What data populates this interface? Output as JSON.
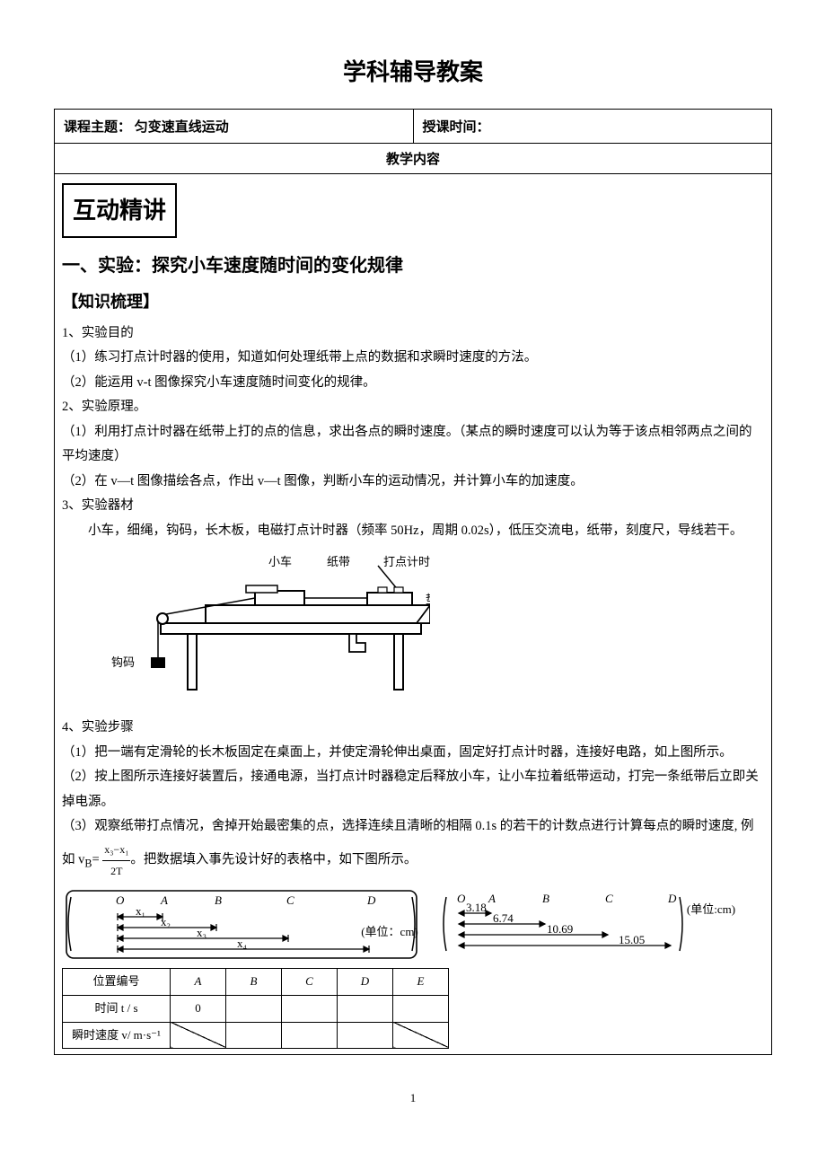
{
  "doc_title": "学科辅导教案",
  "header": {
    "left_label": "课程主题：",
    "left_value": "匀变速直线运动",
    "right_label": "授课时间：",
    "right_value": ""
  },
  "section_bar": "教学内容",
  "boxed_heading": "互动精讲",
  "section1": {
    "title": "一、实验：探究小车速度随时间的变化规律",
    "sub": "【知识梳理】",
    "p1_label": "1、实验目的",
    "p1_1": "（1）练习打点计时器的使用，知道如何处理纸带上点的数据和求瞬时速度的方法。",
    "p1_2": "（2）能运用 v-t 图像探究小车速度随时间变化的规律。",
    "p2_label": "2、实验原理。",
    "p2_1": "（1）利用打点计时器在纸带上打的点的信息，求出各点的瞬时速度。（某点的瞬时速度可以认为等于该点相邻两点之间的平均速度）",
    "p2_2": "（2）在 v—t 图像描绘各点，作出 v—t 图像，判断小车的运动情况，并计算小车的加速度。",
    "p3_label": "3、实验器材",
    "p3_text": "　　小车，细绳，钩码，长木板，电磁打点计时器（频率 50Hz，周期 0.02s），低压交流电，纸带，刻度尺，导线若干。",
    "p4_label": "4、实验步骤",
    "p4_1": "（1）把一端有定滑轮的长木板固定在桌面上，并使定滑轮伸出桌面，固定好打点计时器，连接好电路，如上图所示。",
    "p4_2": "（2）按上图所示连接好装置后，接通电源，当打点计时器稳定后释放小车，让小车拉着纸带运动，打完一条纸带后立即关掉电源。",
    "p4_3_a": "（3）观察纸带打点情况，舍掉开始最密集的点，选择连续且清晰的相隔 0.1s 的若干的计数点进行计算每点的瞬时速度, 例如 v",
    "p4_3_b": "B",
    "p4_3_c": "= ",
    "frac_num": "x₃−x₁",
    "frac_den": "2T",
    "p4_3_d": "。把数据填入事先设计好的表格中，如下图所示。"
  },
  "apparatus_diagram": {
    "labels": {
      "car": "小车",
      "tape": "纸带",
      "timer": "打点计时器",
      "block": "垫块",
      "weight": "钩码"
    },
    "colors": {
      "stroke": "#000000",
      "fill_light": "#ffffff"
    }
  },
  "tape_diagram_left": {
    "points": [
      "O",
      "A",
      "B",
      "C",
      "D"
    ],
    "segments": [
      "x₁",
      "x₂",
      "x₃",
      "x₄"
    ],
    "unit_label": "(单位：cm)"
  },
  "tape_diagram_right": {
    "points": [
      "O",
      "A",
      "B",
      "C",
      "D"
    ],
    "values": [
      "3.18",
      "6.74",
      "10.69",
      "15.05"
    ],
    "unit_label": "(单位:cm)"
  },
  "data_table": {
    "rows": [
      {
        "label": "位置编号",
        "cells": [
          "A",
          "B",
          "C",
          "D",
          "E"
        ]
      },
      {
        "label": "时间 t / s",
        "cells": [
          "0",
          "",
          "",
          "",
          ""
        ]
      },
      {
        "label": "瞬时速度 v/ m·s⁻¹",
        "cells": [
          "",
          "",
          "",
          "",
          ""
        ],
        "slashes": [
          true,
          false,
          false,
          false,
          true
        ]
      }
    ]
  },
  "page_number": "1"
}
